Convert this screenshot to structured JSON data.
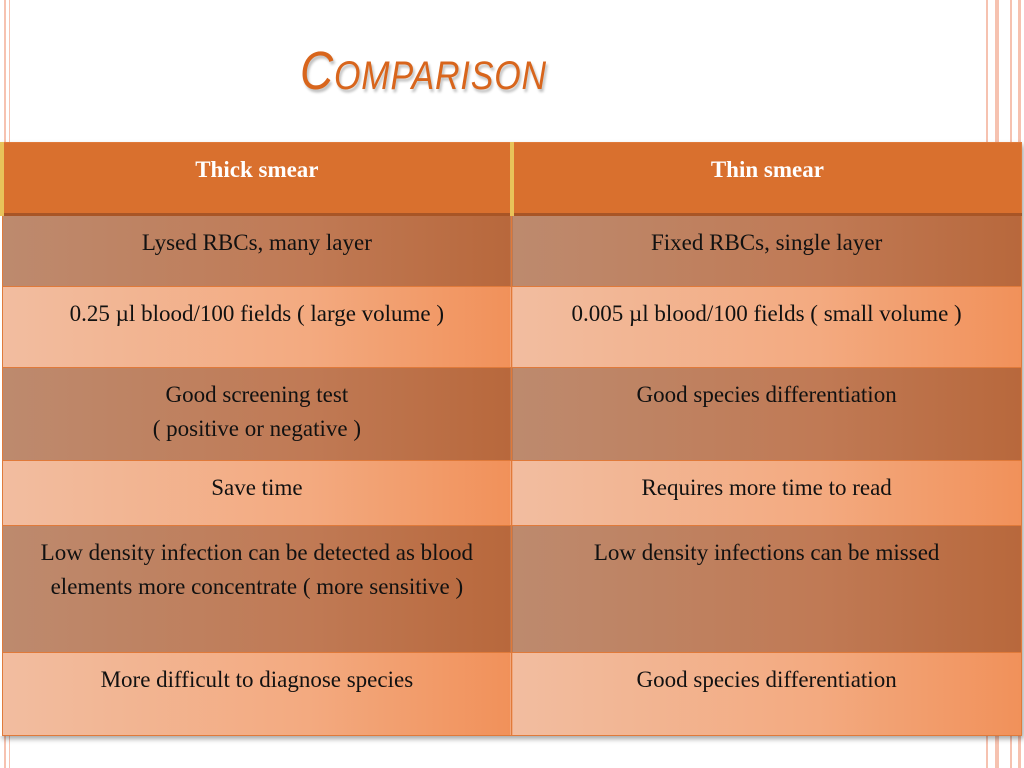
{
  "title": "Comparison",
  "table": {
    "headers": [
      "Thick smear",
      "Thin smear"
    ],
    "rows": [
      [
        "Lysed RBCs, many layer",
        "Fixed RBCs, single layer"
      ],
      [
        "0.25 µl blood/100 fields ( large volume )",
        "0.005 µl blood/100 fields ( small volume )"
      ],
      [
        "Good screening test\n( positive or negative )",
        "Good species differentiation"
      ],
      [
        "Save time",
        "Requires more time to read"
      ],
      [
        "Low density infection can be detected as blood elements more concentrate ( more sensitive )",
        "Low density infections can be missed"
      ],
      [
        "More difficult to diagnose species",
        "Good species differentiation"
      ]
    ]
  }
}
